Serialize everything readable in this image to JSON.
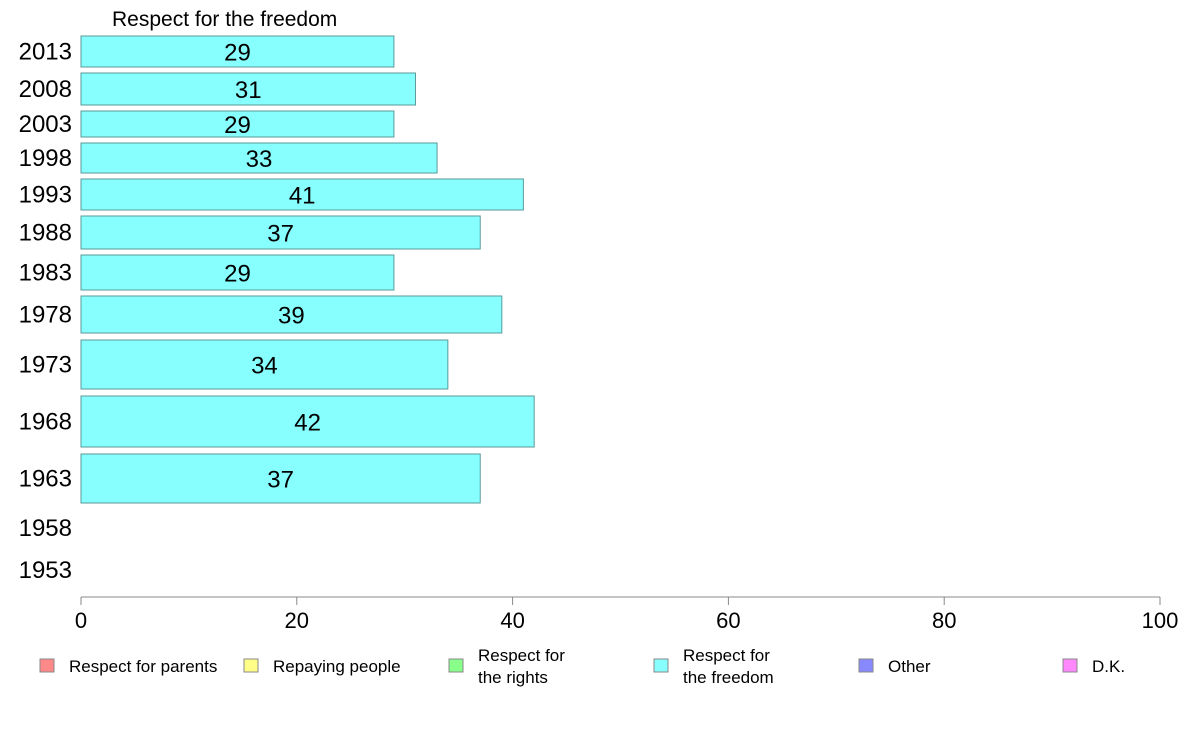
{
  "chart_data": {
    "type": "bar",
    "orientation": "horizontal",
    "title": "Respect for the freedom",
    "categories": [
      "2013",
      "2008",
      "2003",
      "1998",
      "1993",
      "1988",
      "1983",
      "1978",
      "1973",
      "1968",
      "1963",
      "1958",
      "1953"
    ],
    "series": [
      {
        "name": "Respect for the freedom",
        "color": "#88ffff",
        "values": [
          29,
          31,
          29,
          33,
          41,
          37,
          29,
          39,
          34,
          42,
          37,
          null,
          null
        ]
      }
    ],
    "xlim": [
      0,
      100
    ],
    "xticks": [
      "0",
      "20",
      "40",
      "60",
      "80",
      "100"
    ],
    "xlabel": "",
    "ylabel": "",
    "grid": false,
    "legend_position": "bottom",
    "legend": [
      {
        "label_lines": [
          "Respect for parents"
        ],
        "color": "#ff8888"
      },
      {
        "label_lines": [
          "Repaying people"
        ],
        "color": "#ffff88"
      },
      {
        "label_lines": [
          "Respect for",
          "the rights"
        ],
        "color": "#88ff88"
      },
      {
        "label_lines": [
          "Respect for",
          "the freedom"
        ],
        "color": "#88ffff"
      },
      {
        "label_lines": [
          "Other"
        ],
        "color": "#8888ff"
      },
      {
        "label_lines": [
          "D.K."
        ],
        "color": "#ff88ff"
      }
    ]
  }
}
